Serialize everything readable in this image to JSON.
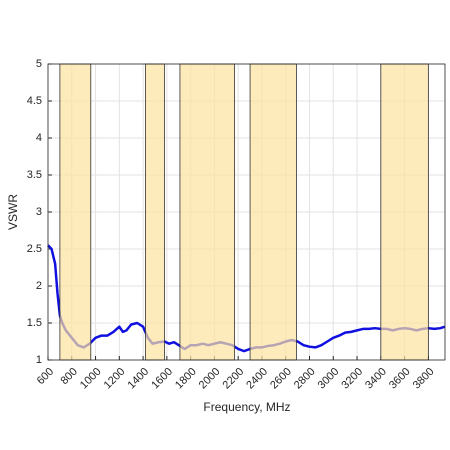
{
  "chart_data": {
    "type": "line",
    "xlabel": "Frequency, MHz",
    "ylabel": "VSWR",
    "xlim": [
      600,
      3940
    ],
    "ylim": [
      1,
      5
    ],
    "xticks": [
      600,
      800,
      1000,
      1200,
      1400,
      1600,
      1800,
      2000,
      2200,
      2400,
      2600,
      2800,
      3000,
      3200,
      3400,
      3600,
      3800
    ],
    "yticks": [
      1,
      1.5,
      2,
      2.5,
      3,
      3.5,
      4,
      4.5,
      5
    ],
    "grid": true,
    "band_color": "#fde3a0",
    "bands": [
      [
        700,
        960
      ],
      [
        1420,
        1580
      ],
      [
        1710,
        2170
      ],
      [
        2300,
        2690
      ],
      [
        3400,
        3800
      ]
    ],
    "series": [
      {
        "color": "#1010e0",
        "x": [
          600,
          630,
          660,
          680,
          700,
          720,
          750,
          800,
          850,
          900,
          950,
          1000,
          1050,
          1100,
          1150,
          1200,
          1230,
          1260,
          1300,
          1350,
          1400,
          1440,
          1480,
          1530,
          1580,
          1620,
          1660,
          1700,
          1750,
          1800,
          1850,
          1900,
          1950,
          2000,
          2050,
          2100,
          2150,
          2200,
          2250,
          2300,
          2350,
          2400,
          2450,
          2500,
          2550,
          2600,
          2650,
          2700,
          2750,
          2800,
          2850,
          2900,
          2950,
          3000,
          3050,
          3100,
          3150,
          3200,
          3250,
          3300,
          3350,
          3400,
          3450,
          3500,
          3550,
          3600,
          3650,
          3700,
          3750,
          3800,
          3850,
          3900,
          3940
        ],
        "values": [
          2.55,
          2.5,
          2.3,
          1.9,
          1.6,
          1.5,
          1.4,
          1.3,
          1.2,
          1.17,
          1.22,
          1.3,
          1.33,
          1.33,
          1.38,
          1.45,
          1.38,
          1.4,
          1.48,
          1.5,
          1.45,
          1.3,
          1.22,
          1.24,
          1.25,
          1.22,
          1.24,
          1.2,
          1.15,
          1.2,
          1.2,
          1.22,
          1.2,
          1.22,
          1.24,
          1.22,
          1.2,
          1.15,
          1.12,
          1.15,
          1.17,
          1.17,
          1.19,
          1.2,
          1.22,
          1.25,
          1.27,
          1.25,
          1.2,
          1.18,
          1.17,
          1.2,
          1.25,
          1.3,
          1.33,
          1.37,
          1.38,
          1.4,
          1.42,
          1.42,
          1.43,
          1.42,
          1.42,
          1.4,
          1.42,
          1.43,
          1.42,
          1.4,
          1.42,
          1.43,
          1.42,
          1.43,
          1.45
        ]
      }
    ]
  }
}
